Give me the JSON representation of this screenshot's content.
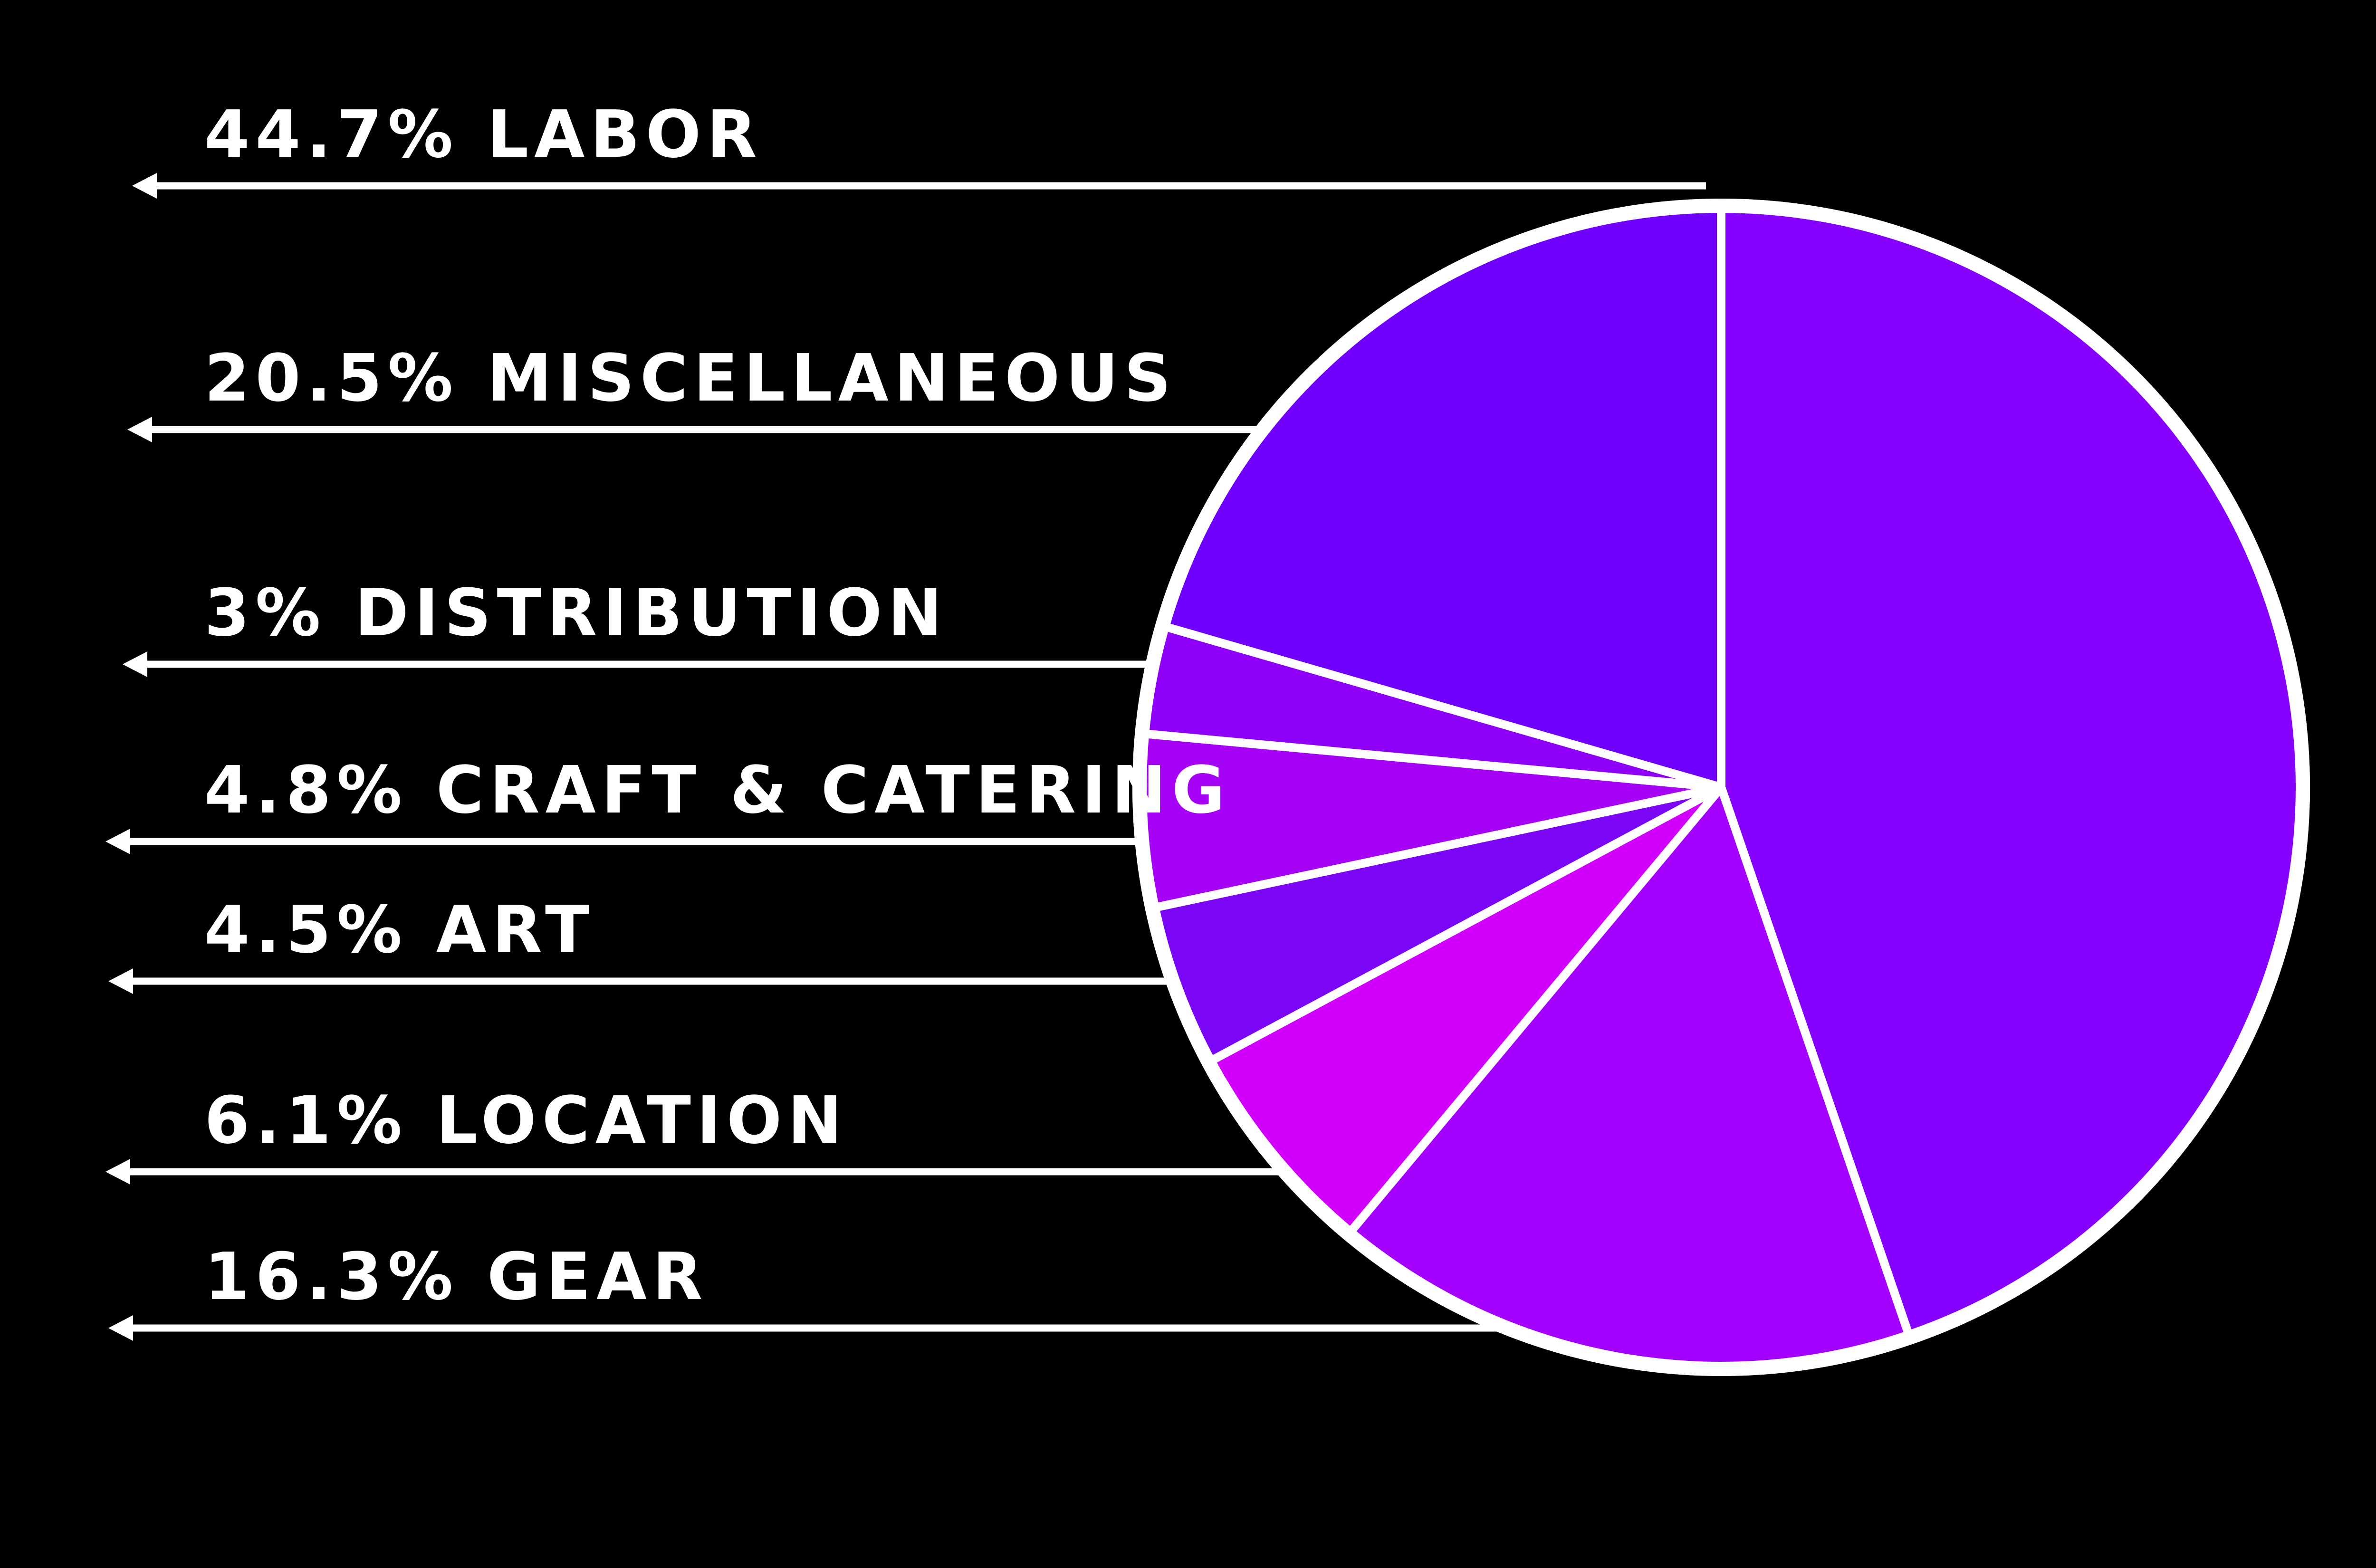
{
  "figure": {
    "background_color": "#000000",
    "callout_line_color": "#ffffff",
    "label_text_color": "#ffffff",
    "slice_border_color": "#ffffff"
  },
  "chart_data": {
    "type": "pie",
    "title": "",
    "legend_position": "left-callout-arrows",
    "start_angle_deg_from_top": 0,
    "direction": "clockwise",
    "total_percent": 99.9,
    "slices": [
      {
        "label": "LABOR",
        "value": 44.7,
        "display": "44.7% LABOR",
        "color": "#8500FD"
      },
      {
        "label": "MISCELLANEOUS",
        "value": 20.5,
        "display": "20.5% MISCELLANEOUS",
        "color": "#6E00FC"
      },
      {
        "label": "DISTRIBUTION",
        "value": 3,
        "display": "3% DISTRIBUTION",
        "color": "#8F00F8"
      },
      {
        "label": "CRAFT & CATERING",
        "value": 4.8,
        "display": "4.8% CRAFT & CATERING",
        "color": "#A602F6"
      },
      {
        "label": "ART",
        "value": 4.5,
        "display": "4.5% ART",
        "color": "#7A06F5"
      },
      {
        "label": "LOCATION",
        "value": 6.1,
        "display": "6.1% LOCATION",
        "color": "#D100FD"
      },
      {
        "label": "GEAR",
        "value": 16.3,
        "display": "16.3% GEAR",
        "color": "#A400FE"
      }
    ],
    "clockwise_slice_order_from_top": [
      "LABOR",
      "GEAR",
      "LOCATION",
      "ART",
      "CRAFT & CATERING",
      "DISTRIBUTION",
      "MISCELLANEOUS"
    ]
  }
}
